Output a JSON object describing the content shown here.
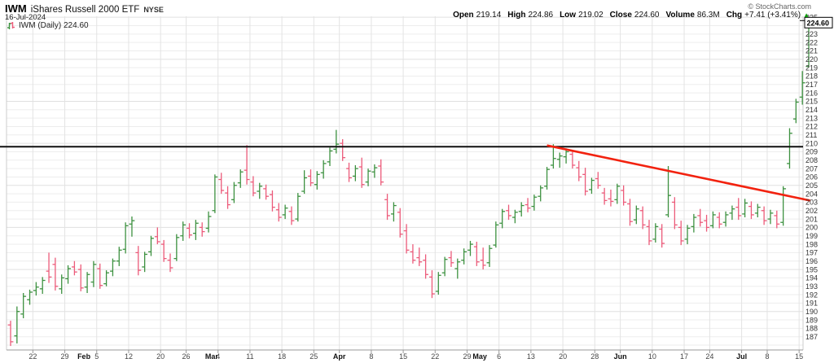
{
  "header": {
    "symbol": "IWM",
    "name": "iShares Russell 2000 ETF",
    "exchange": "NYSE",
    "date": "16-Jul-2024",
    "credit": "© StockCharts.com",
    "quote": {
      "open_label": "Open",
      "open": "219.14",
      "high_label": "High",
      "high": "224.86",
      "low_label": "Low",
      "low": "219.02",
      "close_label": "Close",
      "close": "224.60",
      "volume_label": "Volume",
      "volume": "86.3M",
      "chg_label": "Chg",
      "chg": "+7.41 (+3.41%)",
      "direction": "▲"
    },
    "legend": "IWM (Daily) 224.60"
  },
  "chart_data": {
    "type": "ohlc-bar",
    "title": "IWM (Daily)",
    "timeframe": "Daily",
    "last_price_label": "224.60",
    "y_axis": {
      "min": 187,
      "max": 225,
      "step": 1
    },
    "x_labels": [
      {
        "t": "22",
        "i": 4
      },
      {
        "t": "29",
        "i": 9
      },
      {
        "t": "Feb",
        "i": 12,
        "b": 1
      },
      {
        "t": "5",
        "i": 14
      },
      {
        "t": "12",
        "i": 19
      },
      {
        "t": "20",
        "i": 24
      },
      {
        "t": "26",
        "i": 28
      },
      {
        "t": "Mar",
        "i": 32,
        "b": 1
      },
      {
        "t": "4",
        "i": 33
      },
      {
        "t": "11",
        "i": 38
      },
      {
        "t": "18",
        "i": 43
      },
      {
        "t": "25",
        "i": 48
      },
      {
        "t": "Apr",
        "i": 52,
        "b": 1
      },
      {
        "t": "8",
        "i": 57
      },
      {
        "t": "15",
        "i": 62
      },
      {
        "t": "22",
        "i": 67
      },
      {
        "t": "29",
        "i": 72
      },
      {
        "t": "May",
        "i": 74,
        "b": 1
      },
      {
        "t": "6",
        "i": 77
      },
      {
        "t": "13",
        "i": 82
      },
      {
        "t": "20",
        "i": 87
      },
      {
        "t": "28",
        "i": 92
      },
      {
        "t": "Jun",
        "i": 96,
        "b": 1
      },
      {
        "t": "10",
        "i": 101
      },
      {
        "t": "17",
        "i": 106
      },
      {
        "t": "24",
        "i": 110
      },
      {
        "t": "Jul",
        "i": 115,
        "b": 1
      },
      {
        "t": "8",
        "i": 119
      },
      {
        "t": "15",
        "i": 124
      }
    ],
    "grid_weeks": [
      4,
      9,
      14,
      19,
      24,
      28,
      33,
      38,
      43,
      48,
      52,
      57,
      62,
      67,
      72,
      77,
      82,
      87,
      92,
      96,
      101,
      106,
      110,
      115,
      119,
      124
    ],
    "overlays": {
      "resistance_price": 209.6,
      "trendline": {
        "i1": 84.0,
        "p1": 209.75,
        "i2": 125.2,
        "p2": 203.2
      }
    },
    "colors": {
      "up": "#3d9140",
      "down": "#ec5b7a",
      "trend": "#f2220f",
      "line": "#111111",
      "grid": "#ededed",
      "grid_major": "#e0e0e0",
      "vgrid": "#e3e3e3",
      "axis_text": "#333333",
      "border": "#cccccc",
      "axis_line": "#999999"
    },
    "dates": [
      "16-Jan",
      "17-Jan",
      "18-Jan",
      "19-Jan",
      "22-Jan",
      "23-Jan",
      "24-Jan",
      "25-Jan",
      "26-Jan",
      "29-Jan",
      "30-Jan",
      "31-Jan",
      "1-Feb",
      "2-Feb",
      "5-Feb",
      "6-Feb",
      "7-Feb",
      "8-Feb",
      "9-Feb",
      "12-Feb",
      "13-Feb",
      "14-Feb",
      "15-Feb",
      "16-Feb",
      "20-Feb",
      "21-Feb",
      "22-Feb",
      "23-Feb",
      "26-Feb",
      "27-Feb",
      "28-Feb",
      "29-Feb",
      "1-Mar",
      "4-Mar",
      "5-Mar",
      "6-Mar",
      "7-Mar",
      "8-Mar",
      "11-Mar",
      "12-Mar",
      "13-Mar",
      "14-Mar",
      "15-Mar",
      "18-Mar",
      "19-Mar",
      "20-Mar",
      "21-Mar",
      "22-Mar",
      "25-Mar",
      "26-Mar",
      "27-Mar",
      "28-Mar",
      "1-Apr",
      "2-Apr",
      "3-Apr",
      "4-Apr",
      "5-Apr",
      "8-Apr",
      "9-Apr",
      "10-Apr",
      "11-Apr",
      "12-Apr",
      "15-Apr",
      "16-Apr",
      "17-Apr",
      "18-Apr",
      "19-Apr",
      "22-Apr",
      "23-Apr",
      "24-Apr",
      "25-Apr",
      "26-Apr",
      "29-Apr",
      "30-Apr",
      "1-May",
      "2-May",
      "3-May",
      "6-May",
      "7-May",
      "8-May",
      "9-May",
      "10-May",
      "13-May",
      "14-May",
      "15-May",
      "16-May",
      "17-May",
      "20-May",
      "21-May",
      "22-May",
      "23-May",
      "24-May",
      "28-May",
      "29-May",
      "30-May",
      "31-May",
      "3-Jun",
      "4-Jun",
      "5-Jun",
      "6-Jun",
      "7-Jun",
      "10-Jun",
      "11-Jun",
      "12-Jun",
      "13-Jun",
      "14-Jun",
      "17-Jun",
      "18-Jun",
      "20-Jun",
      "21-Jun",
      "24-Jun",
      "25-Jun",
      "26-Jun",
      "27-Jun",
      "28-Jun",
      "1-Jul",
      "2-Jul",
      "3-Jul",
      "5-Jul",
      "8-Jul",
      "9-Jul",
      "10-Jul",
      "11-Jul",
      "12-Jul",
      "15-Jul",
      "16-Jul"
    ],
    "bars": [
      [
        188.4,
        188.9,
        185.9,
        186.4
      ],
      [
        187.1,
        190.6,
        186.2,
        190.0
      ],
      [
        189.7,
        192.2,
        189.2,
        191.8
      ],
      [
        191.4,
        192.6,
        190.8,
        192.3
      ],
      [
        192.5,
        193.5,
        191.9,
        192.9
      ],
      [
        192.7,
        194.1,
        192.1,
        193.7
      ],
      [
        194.8,
        197.0,
        193.4,
        194.1
      ],
      [
        195.6,
        196.4,
        192.5,
        193.0
      ],
      [
        192.7,
        194.4,
        192.1,
        194.0
      ],
      [
        193.9,
        195.5,
        193.3,
        195.1
      ],
      [
        195.3,
        196.0,
        194.3,
        194.7
      ],
      [
        195.0,
        195.6,
        192.4,
        192.8
      ],
      [
        192.9,
        194.7,
        192.2,
        194.4
      ],
      [
        193.5,
        196.0,
        192.9,
        195.6
      ],
      [
        195.1,
        195.7,
        192.7,
        193.1
      ],
      [
        193.3,
        194.9,
        193.0,
        194.6
      ],
      [
        194.8,
        196.3,
        194.2,
        196.0
      ],
      [
        196.0,
        197.7,
        195.4,
        197.3
      ],
      [
        197.4,
        200.6,
        196.9,
        200.2
      ],
      [
        200.4,
        201.3,
        198.9,
        200.8
      ],
      [
        197.0,
        197.8,
        194.3,
        194.9
      ],
      [
        195.3,
        197.1,
        194.7,
        196.8
      ],
      [
        197.1,
        199.0,
        196.6,
        198.7
      ],
      [
        198.9,
        200.0,
        198.0,
        198.3
      ],
      [
        198.0,
        198.5,
        195.9,
        196.3
      ],
      [
        196.1,
        196.9,
        194.7,
        195.2
      ],
      [
        196.3,
        199.2,
        196.0,
        198.8
      ],
      [
        199.0,
        200.7,
        198.4,
        200.3
      ],
      [
        199.9,
        200.5,
        198.7,
        199.1
      ],
      [
        199.3,
        200.9,
        198.5,
        200.5
      ],
      [
        200.0,
        200.6,
        198.9,
        199.5
      ],
      [
        199.9,
        201.9,
        199.4,
        201.3
      ],
      [
        202.0,
        206.3,
        201.7,
        206.0
      ],
      [
        205.7,
        206.5,
        204.0,
        204.4
      ],
      [
        204.1,
        204.9,
        202.2,
        202.7
      ],
      [
        203.3,
        205.4,
        202.9,
        205.0
      ],
      [
        205.3,
        206.9,
        204.7,
        206.6
      ],
      [
        206.8,
        209.8,
        205.1,
        205.7
      ],
      [
        205.4,
        206.1,
        203.7,
        204.1
      ],
      [
        204.3,
        205.3,
        203.4,
        204.9
      ],
      [
        204.6,
        205.1,
        203.3,
        203.7
      ],
      [
        203.9,
        204.4,
        201.9,
        202.4
      ],
      [
        202.1,
        202.9,
        200.7,
        201.2
      ],
      [
        201.5,
        202.7,
        201.0,
        202.3
      ],
      [
        201.9,
        202.5,
        200.3,
        200.8
      ],
      [
        201.0,
        204.1,
        200.7,
        203.7
      ],
      [
        204.3,
        206.8,
        204.0,
        205.9
      ],
      [
        206.1,
        206.9,
        204.9,
        205.3
      ],
      [
        205.1,
        206.7,
        204.5,
        206.3
      ],
      [
        206.5,
        208.0,
        205.8,
        207.6
      ],
      [
        207.8,
        209.5,
        207.3,
        209.1
      ],
      [
        209.3,
        211.6,
        208.8,
        209.9
      ],
      [
        210.0,
        210.5,
        207.9,
        208.3
      ],
      [
        207.0,
        207.7,
        205.4,
        205.9
      ],
      [
        206.1,
        207.4,
        205.5,
        207.0
      ],
      [
        207.2,
        208.3,
        204.7,
        205.1
      ],
      [
        205.4,
        207.0,
        204.9,
        206.7
      ],
      [
        206.6,
        207.5,
        205.9,
        207.1
      ],
      [
        207.3,
        208.1,
        205.0,
        205.4
      ],
      [
        203.3,
        204.0,
        200.9,
        201.4
      ],
      [
        201.6,
        203.0,
        200.7,
        202.6
      ],
      [
        201.8,
        202.3,
        198.8,
        199.2
      ],
      [
        199.6,
        200.4,
        196.9,
        197.3
      ],
      [
        197.1,
        198.0,
        195.7,
        196.1
      ],
      [
        196.4,
        197.6,
        195.4,
        195.9
      ],
      [
        196.1,
        196.8,
        193.9,
        194.4
      ],
      [
        194.1,
        194.9,
        191.6,
        192.1
      ],
      [
        192.4,
        194.7,
        192.0,
        194.3
      ],
      [
        194.6,
        196.5,
        194.2,
        196.2
      ],
      [
        196.4,
        197.2,
        195.3,
        195.8
      ],
      [
        195.1,
        196.3,
        193.9,
        195.9
      ],
      [
        196.1,
        197.5,
        195.6,
        197.1
      ],
      [
        197.3,
        198.4,
        196.6,
        198.0
      ],
      [
        197.7,
        198.3,
        195.4,
        195.9
      ],
      [
        196.1,
        197.6,
        195.0,
        195.5
      ],
      [
        195.8,
        197.9,
        195.3,
        197.5
      ],
      [
        197.9,
        200.7,
        197.6,
        200.3
      ],
      [
        200.5,
        202.2,
        199.9,
        201.9
      ],
      [
        202.0,
        202.7,
        200.9,
        201.4
      ],
      [
        201.2,
        202.1,
        200.5,
        201.8
      ],
      [
        201.9,
        203.0,
        201.3,
        202.6
      ],
      [
        202.7,
        203.5,
        201.8,
        202.3
      ],
      [
        202.5,
        203.9,
        202.0,
        203.6
      ],
      [
        203.7,
        205.0,
        203.1,
        204.7
      ],
      [
        204.9,
        207.2,
        204.5,
        206.9
      ],
      [
        207.4,
        209.9,
        207.0,
        208.2
      ],
      [
        208.1,
        208.9,
        207.1,
        208.5
      ],
      [
        208.4,
        209.4,
        207.6,
        209.0
      ],
      [
        208.7,
        209.2,
        207.0,
        207.4
      ],
      [
        207.1,
        207.9,
        205.5,
        206.0
      ],
      [
        206.3,
        207.1,
        203.8,
        204.3
      ],
      [
        204.5,
        205.9,
        204.0,
        205.6
      ],
      [
        205.8,
        206.6,
        204.6,
        205.0
      ],
      [
        204.1,
        204.7,
        202.7,
        203.2
      ],
      [
        203.4,
        204.5,
        202.5,
        203.1
      ],
      [
        203.3,
        205.2,
        202.8,
        204.9
      ],
      [
        204.4,
        205.0,
        202.6,
        203.0
      ],
      [
        202.8,
        203.4,
        200.2,
        200.7
      ],
      [
        200.9,
        202.6,
        200.4,
        202.2
      ],
      [
        202.0,
        202.5,
        199.8,
        200.3
      ],
      [
        200.1,
        200.9,
        197.9,
        198.4
      ],
      [
        198.6,
        200.5,
        198.2,
        200.1
      ],
      [
        199.8,
        200.4,
        197.6,
        198.1
      ],
      [
        201.5,
        207.3,
        201.2,
        203.8
      ],
      [
        203.0,
        203.6,
        199.8,
        200.3
      ],
      [
        200.0,
        200.8,
        197.9,
        198.4
      ],
      [
        198.6,
        200.3,
        198.0,
        199.9
      ],
      [
        200.1,
        201.6,
        199.4,
        201.2
      ],
      [
        201.4,
        202.2,
        200.1,
        200.6
      ],
      [
        200.8,
        201.5,
        199.5,
        200.0
      ],
      [
        200.2,
        201.9,
        199.9,
        201.5
      ],
      [
        201.2,
        201.8,
        199.9,
        200.4
      ],
      [
        200.6,
        201.9,
        200.1,
        201.5
      ],
      [
        201.7,
        202.6,
        200.9,
        202.2
      ],
      [
        202.4,
        203.5,
        200.9,
        201.4
      ],
      [
        201.6,
        203.4,
        201.2,
        202.9
      ],
      [
        202.5,
        203.1,
        201.0,
        201.5
      ],
      [
        201.7,
        202.8,
        201.2,
        202.4
      ],
      [
        202.0,
        202.5,
        200.3,
        200.8
      ],
      [
        201.0,
        202.1,
        200.4,
        201.7
      ],
      [
        201.4,
        202.0,
        199.9,
        200.4
      ],
      [
        200.6,
        204.9,
        200.2,
        204.6
      ],
      [
        207.6,
        211.8,
        207.0,
        211.2
      ],
      [
        212.9,
        215.3,
        212.4,
        214.9
      ],
      [
        215.5,
        218.6,
        214.6,
        217.2
      ],
      [
        219.14,
        224.86,
        219.02,
        224.6
      ]
    ]
  }
}
